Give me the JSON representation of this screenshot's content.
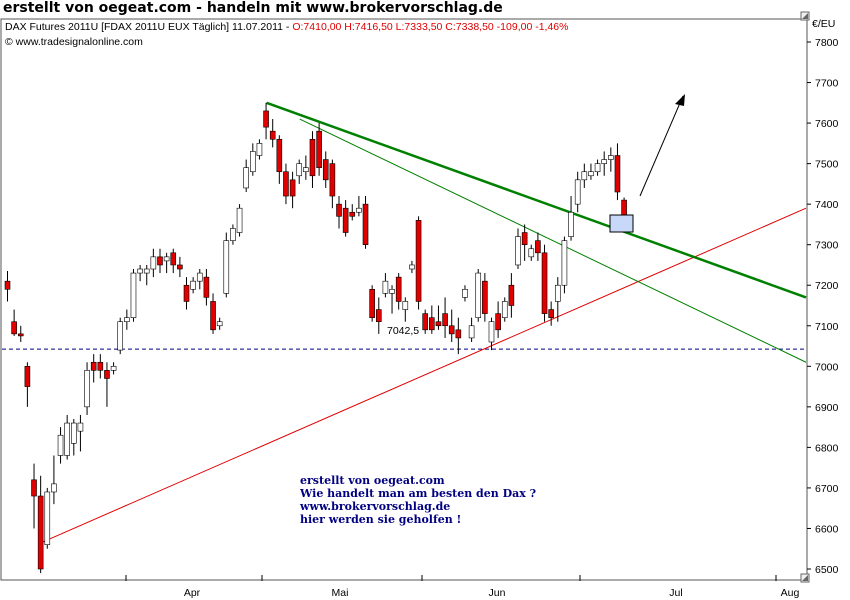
{
  "page_title": "erstellt von oegeat.com - handeln mit www.brokervorschlag.de",
  "chart_data": {
    "type": "candlestick",
    "header": {
      "instrument": "DAX Futures 2011U [FDAX 2011U EUX  Täglich] 11.07.2011 - ",
      "ohlc_change": "O:7410,00 H:7416,50 L:7333,50 C:7338,50 -109,00 -1,46%",
      "source": "© www.tradesignalonline.com"
    },
    "currency_label": "€/EU",
    "y_ticks": [
      7800,
      7700,
      7600,
      7500,
      7400,
      7300,
      7200,
      7100,
      7000,
      6900,
      6800,
      6700,
      6600,
      6500
    ],
    "ylim": [
      6470,
      7840
    ],
    "x_labels": [
      "Apr",
      "Mai",
      "Jun",
      "Jul",
      "Aug"
    ],
    "support_line": {
      "value": 7042.5,
      "label": "7042,5"
    },
    "candles": [
      {
        "o": 7210,
        "h": 7235,
        "l": 7160,
        "c": 7190
      },
      {
        "o": 7110,
        "h": 7140,
        "l": 7075,
        "c": 7080
      },
      {
        "o": 7080,
        "h": 7100,
        "l": 7060,
        "c": 7075
      },
      {
        "o": 7000,
        "h": 7010,
        "l": 6900,
        "c": 6950
      },
      {
        "o": 6720,
        "h": 6760,
        "l": 6600,
        "c": 6680
      },
      {
        "o": 6680,
        "h": 6730,
        "l": 6490,
        "c": 6500
      },
      {
        "o": 6560,
        "h": 6700,
        "l": 6550,
        "c": 6690
      },
      {
        "o": 6690,
        "h": 6780,
        "l": 6660,
        "c": 6710
      },
      {
        "o": 6780,
        "h": 6850,
        "l": 6760,
        "c": 6830
      },
      {
        "o": 6780,
        "h": 6880,
        "l": 6770,
        "c": 6860
      },
      {
        "o": 6810,
        "h": 6870,
        "l": 6780,
        "c": 6860
      },
      {
        "o": 6840,
        "h": 6880,
        "l": 6790,
        "c": 6860
      },
      {
        "o": 6900,
        "h": 7010,
        "l": 6880,
        "c": 6990
      },
      {
        "o": 7010,
        "h": 7030,
        "l": 6960,
        "c": 6990
      },
      {
        "o": 7010,
        "h": 7030,
        "l": 6970,
        "c": 6990
      },
      {
        "o": 6990,
        "h": 7010,
        "l": 6900,
        "c": 6970
      },
      {
        "o": 6990,
        "h": 7010,
        "l": 6980,
        "c": 7000
      },
      {
        "o": 7040,
        "h": 7120,
        "l": 7030,
        "c": 7110
      },
      {
        "o": 7110,
        "h": 7140,
        "l": 7090,
        "c": 7120
      },
      {
        "o": 7120,
        "h": 7240,
        "l": 7110,
        "c": 7230
      },
      {
        "o": 7230,
        "h": 7250,
        "l": 7210,
        "c": 7240
      },
      {
        "o": 7230,
        "h": 7250,
        "l": 7200,
        "c": 7240
      },
      {
        "o": 7240,
        "h": 7290,
        "l": 7220,
        "c": 7270
      },
      {
        "o": 7270,
        "h": 7290,
        "l": 7230,
        "c": 7250
      },
      {
        "o": 7260,
        "h": 7280,
        "l": 7230,
        "c": 7270
      },
      {
        "o": 7280,
        "h": 7290,
        "l": 7230,
        "c": 7250
      },
      {
        "o": 7250,
        "h": 7270,
        "l": 7220,
        "c": 7240
      },
      {
        "o": 7200,
        "h": 7220,
        "l": 7140,
        "c": 7160
      },
      {
        "o": 7190,
        "h": 7220,
        "l": 7180,
        "c": 7210
      },
      {
        "o": 7210,
        "h": 7240,
        "l": 7190,
        "c": 7230
      },
      {
        "o": 7220,
        "h": 7240,
        "l": 7150,
        "c": 7170
      },
      {
        "o": 7160,
        "h": 7180,
        "l": 7080,
        "c": 7090
      },
      {
        "o": 7100,
        "h": 7120,
        "l": 7090,
        "c": 7110
      },
      {
        "o": 7180,
        "h": 7330,
        "l": 7170,
        "c": 7310
      },
      {
        "o": 7310,
        "h": 7350,
        "l": 7300,
        "c": 7340
      },
      {
        "o": 7330,
        "h": 7400,
        "l": 7320,
        "c": 7390
      },
      {
        "o": 7440,
        "h": 7510,
        "l": 7430,
        "c": 7490
      },
      {
        "o": 7480,
        "h": 7550,
        "l": 7470,
        "c": 7530
      },
      {
        "o": 7520,
        "h": 7560,
        "l": 7510,
        "c": 7550
      },
      {
        "o": 7630,
        "h": 7650,
        "l": 7560,
        "c": 7590
      },
      {
        "o": 7580,
        "h": 7610,
        "l": 7540,
        "c": 7560
      },
      {
        "o": 7560,
        "h": 7570,
        "l": 7450,
        "c": 7480
      },
      {
        "o": 7480,
        "h": 7500,
        "l": 7400,
        "c": 7420
      },
      {
        "o": 7460,
        "h": 7480,
        "l": 7390,
        "c": 7420
      },
      {
        "o": 7470,
        "h": 7510,
        "l": 7450,
        "c": 7500
      },
      {
        "o": 7480,
        "h": 7520,
        "l": 7460,
        "c": 7490
      },
      {
        "o": 7560,
        "h": 7580,
        "l": 7440,
        "c": 7470
      },
      {
        "o": 7580,
        "h": 7600,
        "l": 7470,
        "c": 7490
      },
      {
        "o": 7510,
        "h": 7530,
        "l": 7440,
        "c": 7460
      },
      {
        "o": 7500,
        "h": 7510,
        "l": 7390,
        "c": 7420
      },
      {
        "o": 7400,
        "h": 7420,
        "l": 7340,
        "c": 7370
      },
      {
        "o": 7390,
        "h": 7410,
        "l": 7320,
        "c": 7330
      },
      {
        "o": 7380,
        "h": 7400,
        "l": 7360,
        "c": 7370
      },
      {
        "o": 7380,
        "h": 7420,
        "l": 7370,
        "c": 7390
      },
      {
        "o": 7400,
        "h": 7420,
        "l": 7290,
        "c": 7300
      },
      {
        "o": 7190,
        "h": 7200,
        "l": 7110,
        "c": 7120
      },
      {
        "o": 7140,
        "h": 7170,
        "l": 7080,
        "c": 7110
      },
      {
        "o": 7180,
        "h": 7230,
        "l": 7170,
        "c": 7210
      },
      {
        "o": 7180,
        "h": 7200,
        "l": 7130,
        "c": 7190
      },
      {
        "o": 7220,
        "h": 7230,
        "l": 7140,
        "c": 7160
      },
      {
        "o": 7140,
        "h": 7170,
        "l": 7110,
        "c": 7160
      },
      {
        "o": 7240,
        "h": 7260,
        "l": 7230,
        "c": 7250
      },
      {
        "o": 7360,
        "h": 7370,
        "l": 7140,
        "c": 7160
      },
      {
        "o": 7130,
        "h": 7140,
        "l": 7080,
        "c": 7090
      },
      {
        "o": 7120,
        "h": 7150,
        "l": 7080,
        "c": 7090
      },
      {
        "o": 7110,
        "h": 7150,
        "l": 7090,
        "c": 7100
      },
      {
        "o": 7130,
        "h": 7170,
        "l": 7070,
        "c": 7100
      },
      {
        "o": 7100,
        "h": 7140,
        "l": 7060,
        "c": 7080
      },
      {
        "o": 7090,
        "h": 7120,
        "l": 7030,
        "c": 7070
      },
      {
        "o": 7170,
        "h": 7200,
        "l": 7160,
        "c": 7190
      },
      {
        "o": 7070,
        "h": 7120,
        "l": 7060,
        "c": 7100
      },
      {
        "o": 7120,
        "h": 7240,
        "l": 7110,
        "c": 7230
      },
      {
        "o": 7210,
        "h": 7230,
        "l": 7110,
        "c": 7130
      },
      {
        "o": 7060,
        "h": 7120,
        "l": 7040,
        "c": 7110
      },
      {
        "o": 7130,
        "h": 7160,
        "l": 7070,
        "c": 7090
      },
      {
        "o": 7120,
        "h": 7170,
        "l": 7110,
        "c": 7160
      },
      {
        "o": 7200,
        "h": 7230,
        "l": 7120,
        "c": 7150
      },
      {
        "o": 7250,
        "h": 7340,
        "l": 7240,
        "c": 7320
      },
      {
        "o": 7330,
        "h": 7350,
        "l": 7260,
        "c": 7300
      },
      {
        "o": 7270,
        "h": 7300,
        "l": 7260,
        "c": 7290
      },
      {
        "o": 7310,
        "h": 7330,
        "l": 7260,
        "c": 7280
      },
      {
        "o": 7280,
        "h": 7300,
        "l": 7110,
        "c": 7130
      },
      {
        "o": 7140,
        "h": 7160,
        "l": 7100,
        "c": 7120
      },
      {
        "o": 7160,
        "h": 7220,
        "l": 7110,
        "c": 7200
      },
      {
        "o": 7200,
        "h": 7320,
        "l": 7180,
        "c": 7310
      },
      {
        "o": 7320,
        "h": 7420,
        "l": 7310,
        "c": 7380
      },
      {
        "o": 7400,
        "h": 7480,
        "l": 7380,
        "c": 7460
      },
      {
        "o": 7460,
        "h": 7500,
        "l": 7440,
        "c": 7480
      },
      {
        "o": 7470,
        "h": 7500,
        "l": 7460,
        "c": 7480
      },
      {
        "o": 7480,
        "h": 7510,
        "l": 7470,
        "c": 7500
      },
      {
        "o": 7500,
        "h": 7530,
        "l": 7470,
        "c": 7510
      },
      {
        "o": 7510,
        "h": 7540,
        "l": 7480,
        "c": 7520
      },
      {
        "o": 7520,
        "h": 7550,
        "l": 7410,
        "c": 7430
      },
      {
        "o": 7410,
        "h": 7416.5,
        "l": 7333.5,
        "c": 7338.5
      }
    ],
    "trendlines": [
      {
        "name": "support",
        "color": "#e00000",
        "from": [
          5,
          6565
        ],
        "to": [
          93,
          7390
        ]
      },
      {
        "name": "resistance-main",
        "color": "#008000",
        "from": [
          39,
          7650
        ],
        "to": [
          93,
          7170
        ]
      },
      {
        "name": "resistance-steep",
        "color": "#008000",
        "from": [
          44,
          7610
        ],
        "to": [
          93,
          7010
        ]
      }
    ],
    "annotation_lines": [
      "erstellt von oegeat.com",
      "Wie handelt man am besten den Dax ?",
      "www.brokervorschlag.de",
      "hier werden sie geholfen !"
    ],
    "colors": {
      "up": "#ffffff",
      "down": "#e00000",
      "wick": "#000000",
      "accent_red": "#e00000",
      "accent_green": "#008000",
      "note": "#000080"
    }
  }
}
